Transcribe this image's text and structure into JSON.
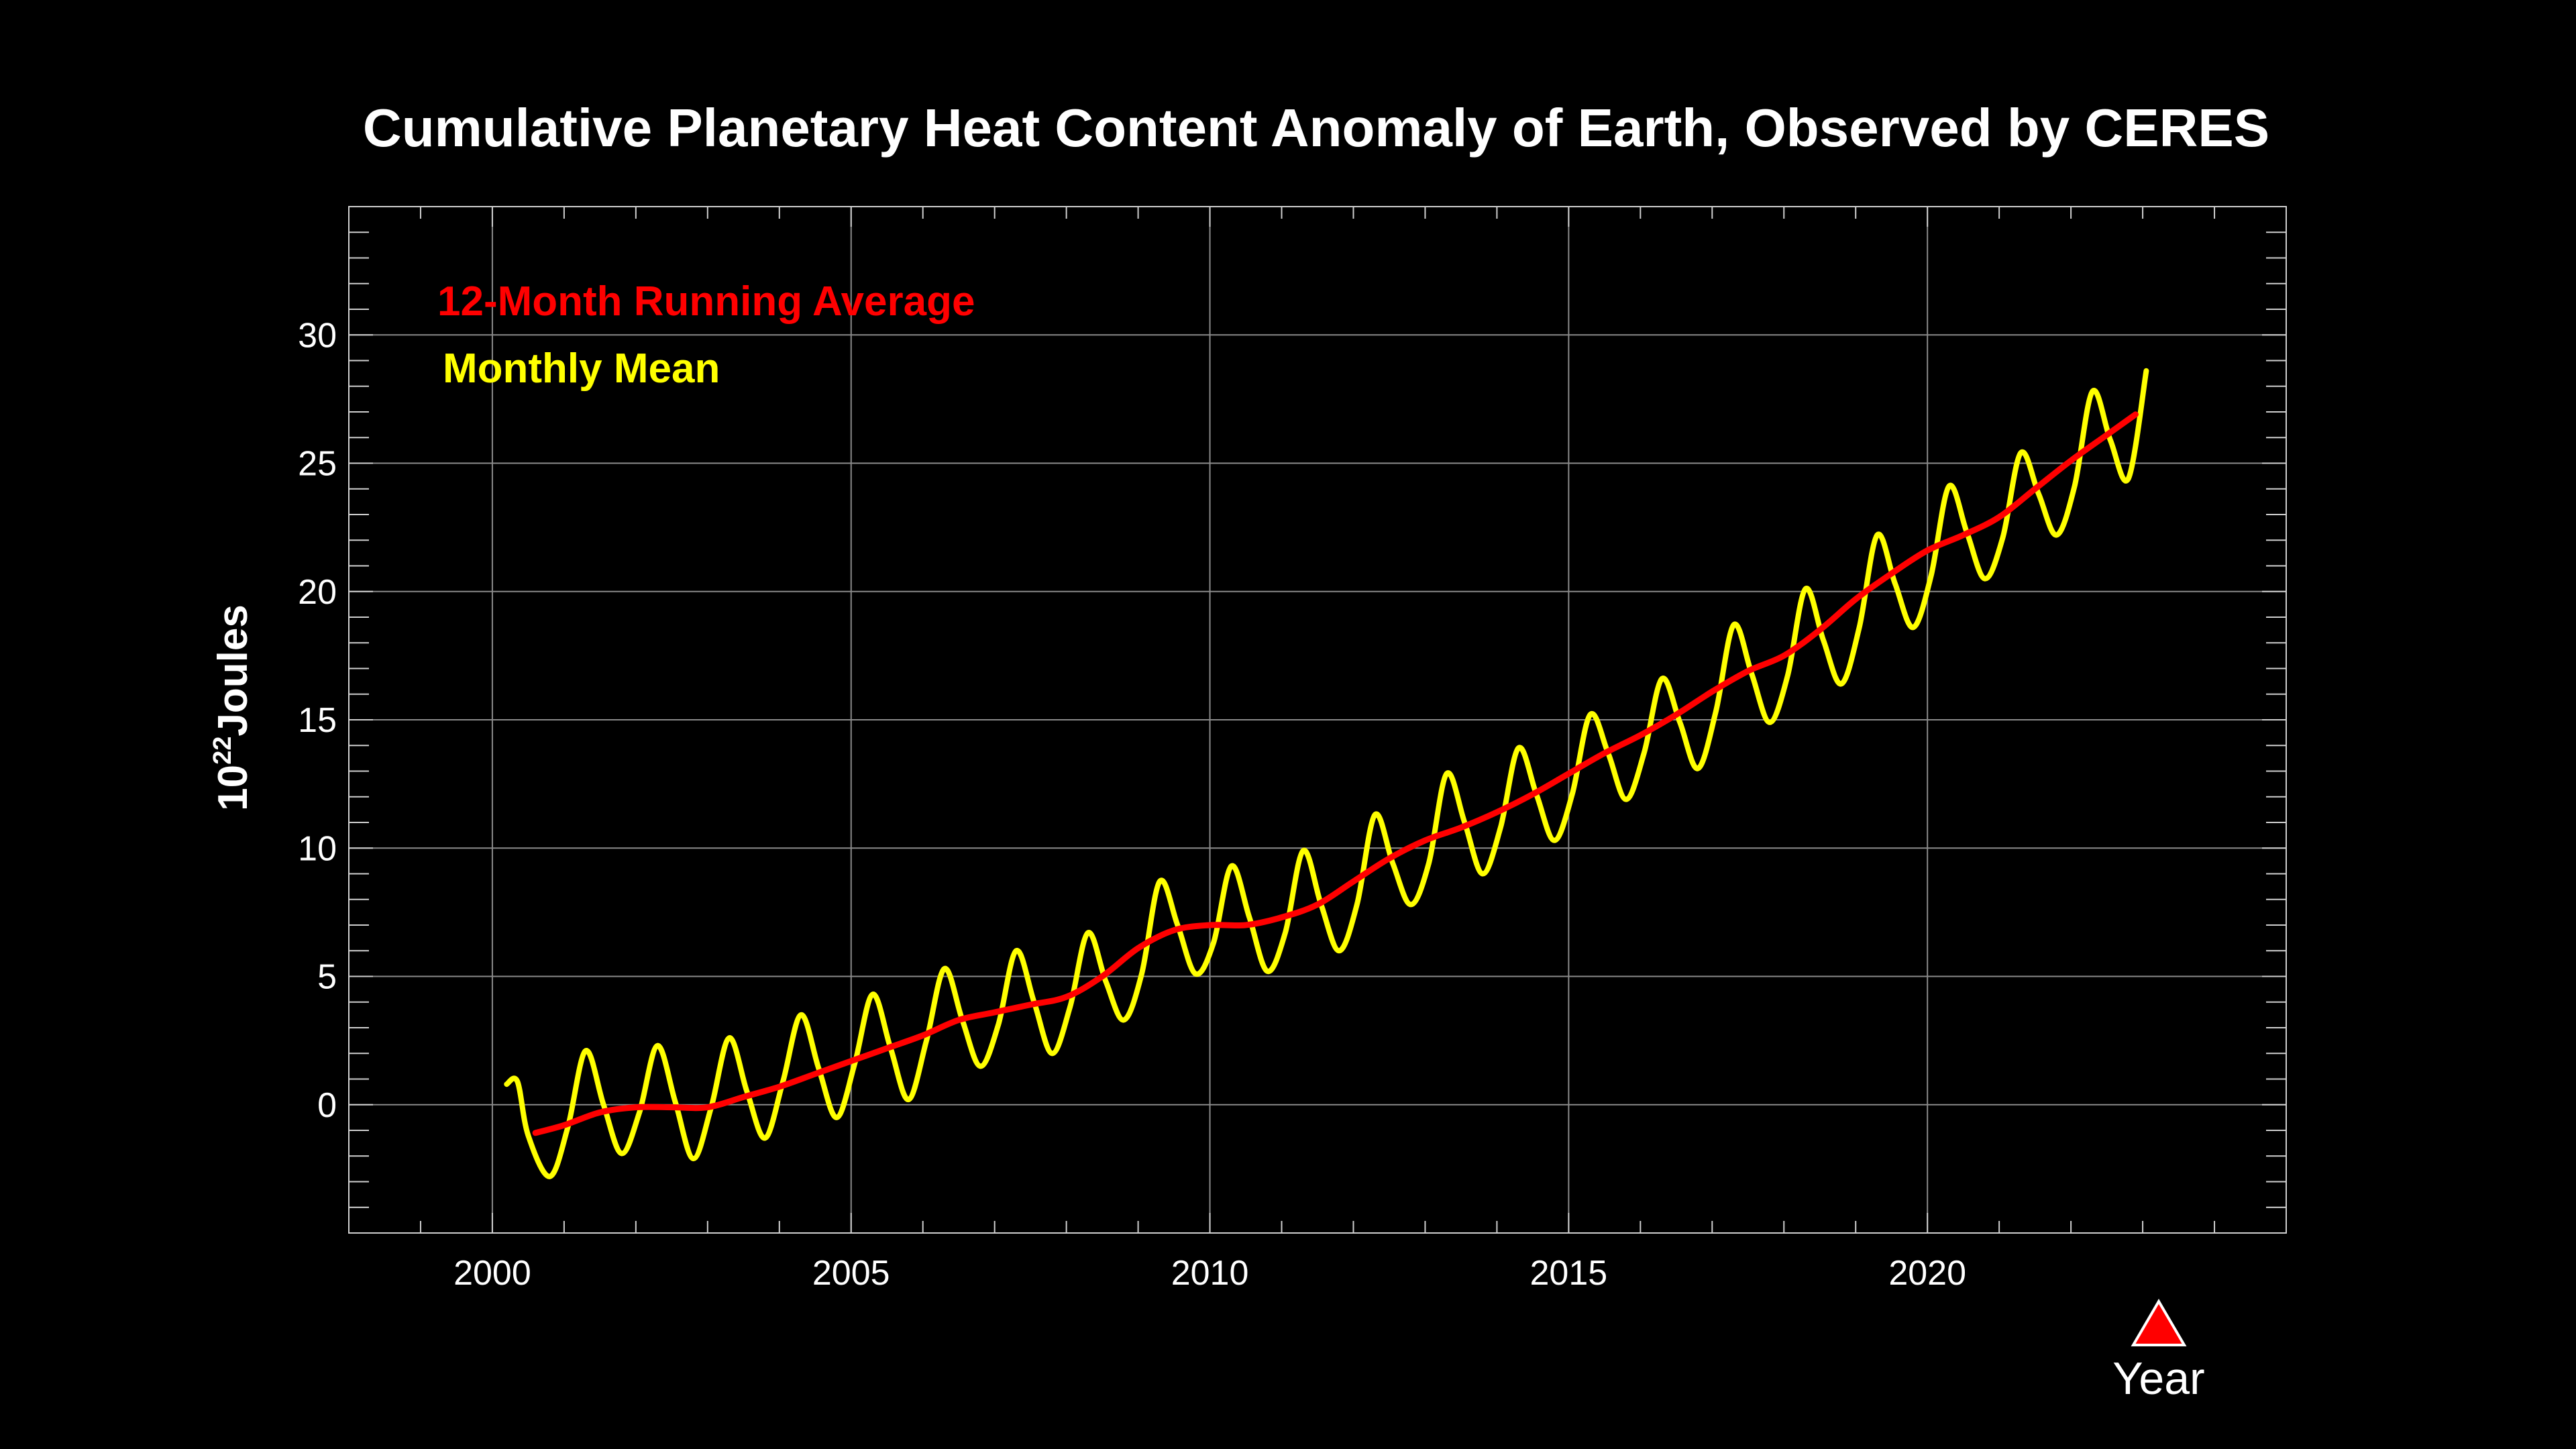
{
  "chart_data": {
    "type": "line",
    "title": "Cumulative Planetary Heat Content Anomaly of Earth, Observed by CERES",
    "ylabel": {
      "base": "10",
      "exponent": "22",
      "unit": "Joules"
    },
    "xlabel": "Year",
    "xlim": [
      1998,
      2025
    ],
    "ylim": [
      -5,
      35
    ],
    "x_ticks": [
      2000,
      2005,
      2010,
      2015,
      2020
    ],
    "y_ticks": [
      0,
      5,
      10,
      15,
      20,
      25,
      30
    ],
    "grid": true,
    "legend_position": "top-left",
    "series": [
      {
        "name": "12-Month Running Average",
        "color": "#ff0000",
        "x": [
          2000.6,
          2001.0,
          2001.5,
          2002.0,
          2002.5,
          2003.0,
          2003.5,
          2004.0,
          2004.5,
          2005.0,
          2005.5,
          2006.0,
          2006.5,
          2007.0,
          2007.5,
          2008.0,
          2008.5,
          2009.0,
          2009.5,
          2010.0,
          2010.5,
          2011.0,
          2011.5,
          2012.0,
          2012.5,
          2013.0,
          2013.5,
          2014.0,
          2014.5,
          2015.0,
          2015.5,
          2016.0,
          2016.5,
          2017.0,
          2017.5,
          2018.0,
          2018.5,
          2019.0,
          2019.5,
          2020.0,
          2020.5,
          2021.0,
          2021.5,
          2022.0,
          2022.5,
          2022.9
        ],
        "values": [
          -1.1,
          -0.8,
          -0.3,
          -0.1,
          -0.1,
          -0.1,
          0.3,
          0.7,
          1.2,
          1.7,
          2.2,
          2.7,
          3.3,
          3.6,
          3.9,
          4.2,
          5.0,
          6.1,
          6.8,
          7.0,
          7.0,
          7.3,
          7.8,
          8.7,
          9.6,
          10.3,
          10.8,
          11.4,
          12.1,
          12.9,
          13.7,
          14.4,
          15.2,
          16.1,
          16.9,
          17.5,
          18.5,
          19.7,
          20.7,
          21.6,
          22.2,
          22.9,
          24.0,
          25.1,
          26.1,
          26.9
        ]
      },
      {
        "name": "Monthly Mean",
        "color": "#ffff00",
        "x": [
          2000.2,
          2000.35,
          2000.5,
          2000.8,
          2001.05,
          2001.3,
          2001.55,
          2001.8,
          2002.05,
          2002.3,
          2002.55,
          2002.8,
          2003.05,
          2003.3,
          2003.55,
          2003.8,
          2004.05,
          2004.3,
          2004.55,
          2004.8,
          2005.05,
          2005.3,
          2005.55,
          2005.8,
          2006.05,
          2006.3,
          2006.55,
          2006.8,
          2007.05,
          2007.3,
          2007.55,
          2007.8,
          2008.05,
          2008.3,
          2008.55,
          2008.8,
          2009.05,
          2009.3,
          2009.55,
          2009.8,
          2010.05,
          2010.3,
          2010.55,
          2010.8,
          2011.05,
          2011.3,
          2011.55,
          2011.8,
          2012.05,
          2012.3,
          2012.55,
          2012.8,
          2013.05,
          2013.3,
          2013.55,
          2013.8,
          2014.05,
          2014.3,
          2014.55,
          2014.8,
          2015.05,
          2015.3,
          2015.55,
          2015.8,
          2016.05,
          2016.3,
          2016.55,
          2016.8,
          2017.05,
          2017.3,
          2017.55,
          2017.8,
          2018.05,
          2018.3,
          2018.55,
          2018.8,
          2019.05,
          2019.3,
          2019.55,
          2019.8,
          2020.05,
          2020.3,
          2020.55,
          2020.8,
          2021.05,
          2021.3,
          2021.55,
          2021.8,
          2022.05,
          2022.3,
          2022.55,
          2022.8,
          2023.05
        ],
        "values": [
          0.8,
          0.9,
          -1.2,
          -2.8,
          -0.9,
          2.1,
          0.0,
          -1.9,
          -0.3,
          2.3,
          0.1,
          -2.1,
          -0.1,
          2.6,
          0.5,
          -1.3,
          0.9,
          3.5,
          1.4,
          -0.5,
          1.6,
          4.3,
          2.2,
          0.2,
          2.5,
          5.3,
          3.3,
          1.5,
          3.1,
          6.0,
          4.0,
          2.0,
          3.8,
          6.7,
          4.8,
          3.3,
          5.1,
          8.7,
          7.0,
          5.1,
          6.3,
          9.3,
          7.3,
          5.2,
          6.7,
          9.9,
          7.8,
          6.0,
          7.8,
          11.3,
          9.4,
          7.8,
          9.4,
          12.9,
          11.0,
          9.0,
          10.8,
          13.9,
          12.1,
          10.3,
          12.1,
          15.2,
          13.7,
          11.9,
          13.7,
          16.6,
          14.9,
          13.1,
          15.3,
          18.7,
          16.8,
          14.9,
          16.7,
          20.1,
          18.1,
          16.4,
          18.6,
          22.2,
          20.3,
          18.6,
          20.6,
          24.1,
          22.3,
          20.5,
          22.1,
          25.4,
          23.8,
          22.2,
          24.1,
          27.8,
          25.9,
          24.4,
          28.6
        ]
      }
    ],
    "year_marker_color": "#ff0000"
  }
}
